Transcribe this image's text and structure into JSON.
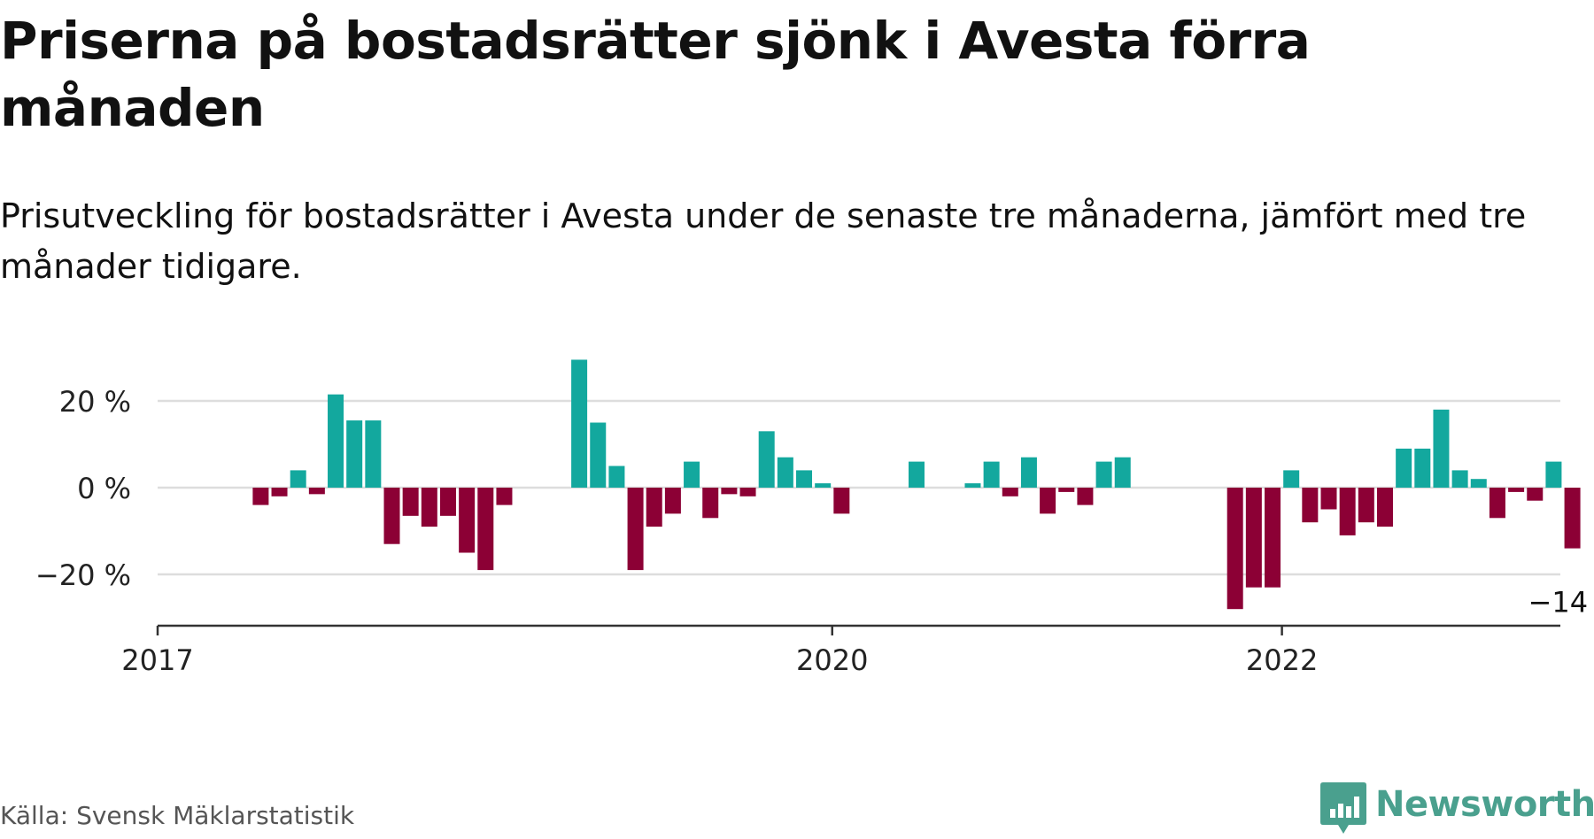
{
  "header": {
    "title": "Priserna på bostadsrätter sjönk i Avesta förra månaden",
    "subtitle": "Prisutveckling för bostadsrätter i Avesta under de senaste tre månaderna, jämfört med tre månader tidigare."
  },
  "footer": {
    "source": "Källa: Svensk Mäklarstatistik",
    "brand": "Newsworthy"
  },
  "colors": {
    "positive": "#13a89e",
    "negative": "#8c0035",
    "grid": "#dddddd",
    "axis": "#333333",
    "brand": "#4aa08e"
  },
  "chart_data": {
    "type": "bar",
    "x_unit": "month",
    "x": [
      "2017-01",
      "2017-02",
      "2017-03",
      "2017-04",
      "2017-05",
      "2017-06",
      "2017-07",
      "2017-08",
      "2017-09",
      "2017-10",
      "2017-11",
      "2017-12",
      "2018-01",
      "2018-02",
      "2018-03",
      "2018-04",
      "2018-05",
      "2018-06",
      "2018-07",
      "2018-08",
      "2018-09",
      "2018-10",
      "2018-11",
      "2018-12",
      "2019-01",
      "2019-02",
      "2019-03",
      "2019-04",
      "2019-05",
      "2019-06",
      "2019-07",
      "2019-08",
      "2019-09",
      "2019-10",
      "2019-11",
      "2019-12",
      "2020-01",
      "2020-02",
      "2020-03",
      "2020-04",
      "2020-05",
      "2020-06",
      "2020-07",
      "2020-08",
      "2020-09",
      "2020-10",
      "2020-11",
      "2020-12",
      "2021-01",
      "2021-02",
      "2021-03",
      "2021-04",
      "2021-05",
      "2021-06",
      "2021-07",
      "2021-08",
      "2021-09",
      "2021-10",
      "2021-11",
      "2021-12",
      "2022-01",
      "2022-02",
      "2022-03",
      "2022-04",
      "2022-05",
      "2022-06",
      "2022-07",
      "2022-08",
      "2022-09",
      "2022-10",
      "2022-11",
      "2022-12",
      "2023-01",
      "2023-02",
      "2023-03",
      "2023-04",
      "2023-05",
      "2023-06",
      "2023-07",
      "2023-08",
      "2023-09",
      "2023-10",
      "2023-11",
      "2023-12"
    ],
    "values": [
      null,
      null,
      null,
      null,
      null,
      -4,
      -2,
      4,
      -1.5,
      21.5,
      15.5,
      15.5,
      -13,
      -6.5,
      -9,
      -6.5,
      -15,
      -19,
      -4,
      null,
      null,
      null,
      29.5,
      15,
      5,
      -19,
      -9,
      -6,
      6,
      -7,
      -1.5,
      -2,
      13,
      7,
      4,
      1,
      -6,
      null,
      null,
      null,
      6,
      null,
      null,
      1,
      6,
      -2,
      7,
      -6,
      -1,
      -4,
      6,
      7,
      null,
      null,
      null,
      null,
      null,
      -28,
      -23,
      -23,
      4,
      -8,
      -5,
      -11,
      -8,
      -9,
      9,
      9,
      18,
      4,
      2,
      -7,
      -1,
      -3,
      6,
      -14,
      null,
      null,
      null,
      null,
      null,
      null,
      null,
      null
    ],
    "ylim": [
      -30,
      30
    ],
    "yticks": [
      {
        "value": 20,
        "label": "20 %"
      },
      {
        "value": 0,
        "label": "0 %"
      },
      {
        "value": -20,
        "label": "−20 %"
      }
    ],
    "xticks": [
      {
        "label": "2017",
        "month_index": 0
      },
      {
        "label": "2020",
        "month_index": 36
      },
      {
        "label": "2022",
        "month_index": 60
      }
    ],
    "annotation": {
      "month_index": 75,
      "label": "−14 %"
    },
    "grid": true,
    "legend": "none"
  }
}
